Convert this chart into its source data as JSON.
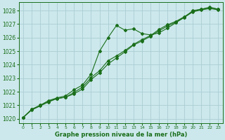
{
  "title": "Graphe pression niveau de la mer (hPa)",
  "bg_color": "#cce8ec",
  "line_color": "#1a6e1a",
  "grid_color": "#aacdd4",
  "xlim": [
    -0.5,
    23.5
  ],
  "ylim": [
    1019.7,
    1028.6
  ],
  "yticks": [
    1020,
    1021,
    1022,
    1023,
    1024,
    1025,
    1026,
    1027,
    1028
  ],
  "xticks": [
    0,
    1,
    2,
    3,
    4,
    5,
    6,
    7,
    8,
    9,
    10,
    11,
    12,
    13,
    14,
    15,
    16,
    17,
    18,
    19,
    20,
    21,
    22,
    23
  ],
  "line1_x": [
    0,
    1,
    2,
    3,
    4,
    5,
    6,
    7,
    8,
    9,
    10,
    11,
    12,
    13,
    14,
    15,
    16,
    17,
    18,
    19,
    20,
    21,
    22,
    23
  ],
  "line1_y": [
    1020.1,
    1020.7,
    1021.0,
    1021.35,
    1021.55,
    1021.7,
    1022.15,
    1022.5,
    1023.3,
    1025.0,
    1026.0,
    1026.9,
    1026.55,
    1026.65,
    1026.3,
    1026.2,
    1026.35,
    1026.7,
    1027.1,
    1027.5,
    1028.0,
    1028.1,
    1028.25,
    1028.1
  ],
  "line2_x": [
    0,
    1,
    2,
    3,
    4,
    5,
    6,
    7,
    8,
    9,
    10,
    11,
    12,
    13,
    14,
    15,
    16,
    17,
    18,
    19,
    20,
    21,
    22,
    23
  ],
  "line2_y": [
    1020.1,
    1020.7,
    1021.0,
    1021.3,
    1021.5,
    1021.6,
    1021.95,
    1022.35,
    1023.05,
    1023.55,
    1024.3,
    1024.65,
    1025.05,
    1025.5,
    1025.85,
    1026.15,
    1026.6,
    1026.95,
    1027.2,
    1027.55,
    1027.95,
    1028.1,
    1028.2,
    1028.1
  ],
  "line3_x": [
    0,
    1,
    2,
    3,
    4,
    5,
    6,
    7,
    8,
    9,
    10,
    11,
    12,
    13,
    14,
    15,
    16,
    17,
    18,
    19,
    20,
    21,
    22,
    23
  ],
  "line3_y": [
    1020.1,
    1020.65,
    1020.95,
    1021.25,
    1021.5,
    1021.6,
    1021.85,
    1022.2,
    1022.9,
    1023.4,
    1024.05,
    1024.5,
    1024.95,
    1025.45,
    1025.75,
    1026.1,
    1026.5,
    1026.85,
    1027.15,
    1027.5,
    1027.9,
    1028.05,
    1028.15,
    1028.05
  ]
}
